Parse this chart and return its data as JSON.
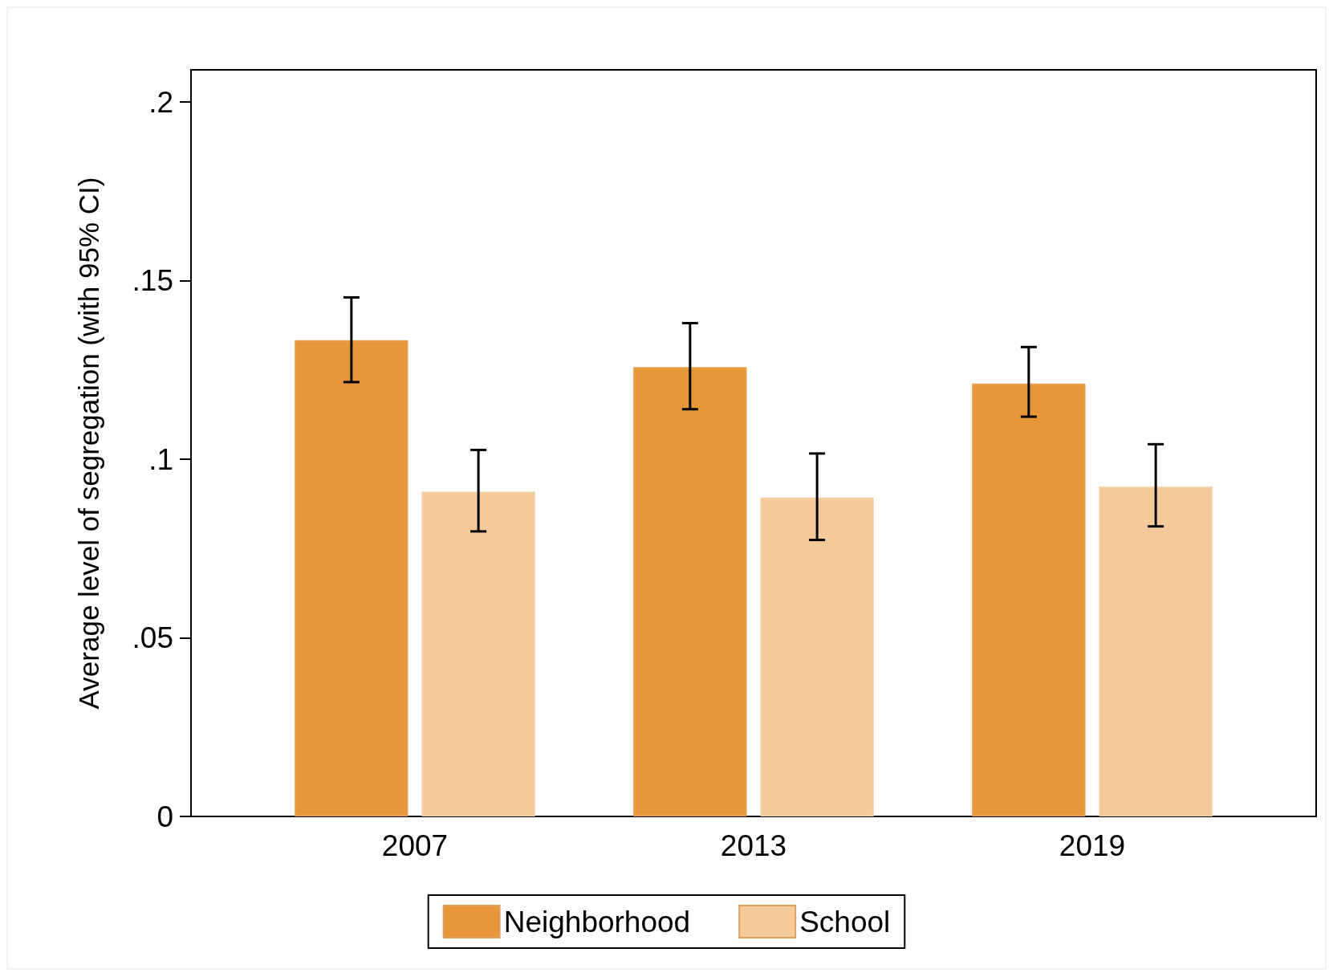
{
  "chart_data": {
    "type": "bar",
    "ylabel": "Average level of segregation (with 95% CI)",
    "categories": [
      "2007",
      "2013",
      "2019"
    ],
    "series": [
      {
        "name": "Neighborhood",
        "color": "#e8963a",
        "values": [
          0.1333,
          0.1258,
          0.1212
        ],
        "errors": [
          [
            0.1216,
            0.1453
          ],
          [
            0.114,
            0.1381
          ],
          [
            0.1119,
            0.1314
          ]
        ]
      },
      {
        "name": "School",
        "color": "#f4ca9a",
        "values": [
          0.0909,
          0.0893,
          0.0923
        ],
        "errors": [
          [
            0.0798,
            0.1026
          ],
          [
            0.0774,
            0.1016
          ],
          [
            0.0812,
            0.1042
          ]
        ]
      }
    ],
    "ylim": [
      0,
      0.209
    ],
    "yticks": [
      0,
      {
        "value": 0.05,
        "label": ".05"
      },
      {
        "value": 0.1,
        "label": ".1"
      },
      {
        "value": 0.15,
        "label": ".15"
      },
      {
        "value": 0.2,
        "label": ".2"
      }
    ],
    "legend": "bottom"
  }
}
